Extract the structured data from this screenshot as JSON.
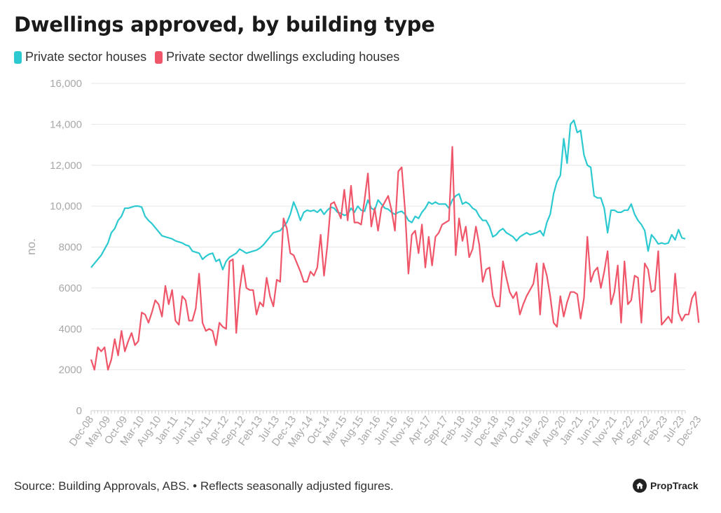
{
  "title": "Dwellings approved, by building type",
  "source_note": "Source: Building Approvals, ABS. • Reflects seasonally adjusted figures.",
  "brand": "PropTrack",
  "chart_data": {
    "type": "line",
    "title": "Dwellings approved, by building type",
    "ylabel": "no.",
    "xlabel": "",
    "ylim": [
      0,
      16000
    ],
    "yticks": [
      0,
      2000,
      4000,
      6000,
      8000,
      10000,
      12000,
      14000,
      16000
    ],
    "ytick_labels": [
      "0",
      "2000",
      "4000",
      "6000",
      "8000",
      "10,000",
      "12,000",
      "14,000",
      "16,000"
    ],
    "x_start": "Dec-08",
    "x_end": "Dec-23",
    "x_ticks": [
      "Dec-08",
      "May-09",
      "Oct-09",
      "Mar-10",
      "Aug-10",
      "Jan-11",
      "Jun-11",
      "Nov-11",
      "Apr-12",
      "Sep-12",
      "Feb-13",
      "Jul-13",
      "Dec-13",
      "May-14",
      "Oct-14",
      "Mar-15",
      "Aug-15",
      "Jan-16",
      "Jun-16",
      "Nov-16",
      "Apr-17",
      "Sep-17",
      "Feb-18",
      "Jul-18",
      "Dec-18",
      "May-19",
      "Oct-19",
      "Mar-20",
      "Aug-20",
      "Jan-21",
      "Jun-21",
      "Nov-21",
      "Apr-22",
      "Sep-22",
      "Feb-23",
      "Jul-23",
      "Dec-23"
    ],
    "grid": true,
    "legend_position": "top-left",
    "colors": {
      "houses": "#2cc9d1",
      "other": "#f0566a"
    },
    "series": [
      {
        "name": "Private sector houses",
        "color": "#2cc9d1",
        "values": [
          7000,
          7200,
          7400,
          7600,
          7900,
          8200,
          8700,
          8900,
          9300,
          9500,
          9900,
          9900,
          9950,
          10000,
          10000,
          9950,
          9500,
          9300,
          9150,
          8950,
          8750,
          8550,
          8500,
          8450,
          8400,
          8300,
          8250,
          8200,
          8100,
          8050,
          7800,
          7750,
          7700,
          7400,
          7550,
          7650,
          7700,
          7300,
          7400,
          6900,
          7300,
          7500,
          7600,
          7700,
          7900,
          7800,
          7700,
          7750,
          7800,
          7850,
          7950,
          8100,
          8300,
          8500,
          8700,
          8750,
          8800,
          9000,
          9200,
          9600,
          10200,
          9800,
          9300,
          9700,
          9800,
          9750,
          9800,
          9700,
          9850,
          9600,
          9800,
          9950,
          9900,
          9700,
          9650,
          9550,
          9600,
          9900,
          9700,
          10000,
          9800,
          9750,
          10300,
          9900,
          9800,
          10300,
          10100,
          9900,
          9850,
          9700,
          9600,
          9700,
          9750,
          9600,
          9300,
          9200,
          9500,
          9400,
          9700,
          9900,
          10200,
          10100,
          10200,
          10100,
          10100,
          10100,
          9900,
          10300,
          10500,
          10600,
          10100,
          10200,
          10100,
          9900,
          9800,
          9500,
          9300,
          9300,
          9000,
          8500,
          8600,
          8800,
          8900,
          8700,
          8600,
          8500,
          8300,
          8500,
          8600,
          8700,
          8600,
          8650,
          8700,
          8800,
          8550,
          9200,
          9600,
          10600,
          11200,
          11500,
          13300,
          12100,
          14000,
          14200,
          13600,
          13700,
          12500,
          12000,
          11900,
          10500,
          10400,
          10400,
          9900,
          8700,
          9800,
          9800,
          9700,
          9700,
          9800,
          9800,
          10100,
          9600,
          9300,
          9100,
          8800,
          7800,
          8600,
          8400,
          8150,
          8200,
          8150,
          8200,
          8600,
          8350,
          8850,
          8450,
          8400
        ]
      },
      {
        "name": "Private sector dwellings excluding houses",
        "color": "#f0566a",
        "values": [
          2500,
          2000,
          3100,
          2900,
          3100,
          2000,
          2500,
          3500,
          2700,
          3900,
          2900,
          3400,
          3800,
          3200,
          3400,
          4800,
          4700,
          4300,
          4800,
          5400,
          5200,
          4600,
          6100,
          5200,
          5900,
          4400,
          4200,
          5600,
          5400,
          4400,
          4400,
          5000,
          6700,
          4300,
          3900,
          4000,
          3900,
          3200,
          4300,
          4100,
          4000,
          7300,
          7400,
          3800,
          5900,
          7100,
          6000,
          5900,
          5900,
          4700,
          5300,
          5100,
          6500,
          5600,
          5100,
          6400,
          6300,
          9400,
          8900,
          7700,
          7600,
          7200,
          6800,
          6300,
          6300,
          6800,
          6600,
          7000,
          8600,
          6600,
          8100,
          10100,
          10200,
          9800,
          9400,
          10800,
          9300,
          11000,
          9200,
          9200,
          9100,
          10300,
          11600,
          9000,
          9900,
          8800,
          9900,
          10200,
          10500,
          9800,
          8800,
          11700,
          11900,
          9800,
          6700,
          8600,
          8800,
          7700,
          9100,
          7000,
          8500,
          7100,
          8500,
          8700,
          9100,
          9200,
          9300,
          12900,
          7600,
          9400,
          8300,
          9000,
          7500,
          7900,
          9000,
          8100,
          6300,
          6900,
          7000,
          5600,
          5100,
          5100,
          7300,
          6500,
          5800,
          5500,
          5800,
          4700,
          5200,
          5600,
          5900,
          6200,
          7200,
          4700,
          7200,
          6600,
          5600,
          4300,
          4100,
          5600,
          4600,
          5300,
          5800,
          5800,
          5700,
          4500,
          5500,
          8500,
          6300,
          6800,
          7000,
          6000,
          6800,
          7800,
          5200,
          5800,
          7100,
          4300,
          7300,
          5200,
          5400,
          6600,
          6500,
          4300,
          7200,
          6900,
          5800,
          5900,
          7800,
          4200,
          4400,
          4600,
          4300,
          6700,
          4800,
          4400,
          4700,
          4700,
          5500,
          5800,
          4300
        ]
      }
    ]
  }
}
